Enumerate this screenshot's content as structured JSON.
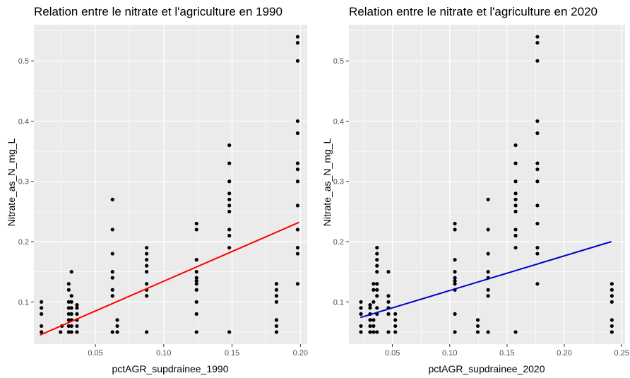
{
  "chart_data": [
    {
      "type": "scatter",
      "title": "Relation entre le nitrate et l'agriculture en 1990",
      "xlabel": "pctAGR_supdrainee_1990",
      "ylabel": "Nitrate_as_N_mg_L",
      "xlim": [
        0.005,
        0.205
      ],
      "ylim": [
        0.03,
        0.56
      ],
      "xticks": [
        0.05,
        0.1,
        0.15,
        0.2
      ],
      "xtick_labels": [
        "0.05",
        "0.10",
        "0.15",
        "0.20"
      ],
      "yticks": [
        0.1,
        0.2,
        0.3,
        0.4,
        0.5
      ],
      "ytick_labels": [
        "0.1",
        "0.2",
        "0.3",
        "0.4",
        "0.5"
      ],
      "grid": true,
      "background": "#ebebeb",
      "point_color": "#000000",
      "trend_color": "#ff0000",
      "trend": {
        "x": [
          0.0095,
          0.199
        ],
        "y": [
          0.045,
          0.232
        ]
      },
      "points": [
        [
          0.0105,
          0.05
        ],
        [
          0.0105,
          0.06
        ],
        [
          0.0105,
          0.08
        ],
        [
          0.0105,
          0.09
        ],
        [
          0.0105,
          0.1
        ],
        [
          0.0245,
          0.05
        ],
        [
          0.0255,
          0.06
        ],
        [
          0.0305,
          0.05
        ],
        [
          0.0305,
          0.06
        ],
        [
          0.0305,
          0.07
        ],
        [
          0.0305,
          0.08
        ],
        [
          0.0305,
          0.09
        ],
        [
          0.0305,
          0.1
        ],
        [
          0.0305,
          0.12
        ],
        [
          0.0305,
          0.13
        ],
        [
          0.0325,
          0.05
        ],
        [
          0.0325,
          0.06
        ],
        [
          0.0325,
          0.07
        ],
        [
          0.0325,
          0.08
        ],
        [
          0.0325,
          0.09
        ],
        [
          0.0325,
          0.1
        ],
        [
          0.0325,
          0.11
        ],
        [
          0.0325,
          0.15
        ],
        [
          0.0365,
          0.05
        ],
        [
          0.0365,
          0.06
        ],
        [
          0.0365,
          0.07
        ],
        [
          0.0365,
          0.08
        ],
        [
          0.0365,
          0.09
        ],
        [
          0.0365,
          0.095
        ],
        [
          0.0625,
          0.05
        ],
        [
          0.0625,
          0.11
        ],
        [
          0.0625,
          0.12
        ],
        [
          0.0625,
          0.14
        ],
        [
          0.0625,
          0.15
        ],
        [
          0.0625,
          0.18
        ],
        [
          0.0625,
          0.22
        ],
        [
          0.0625,
          0.27
        ],
        [
          0.066,
          0.05
        ],
        [
          0.066,
          0.06
        ],
        [
          0.066,
          0.07
        ],
        [
          0.0875,
          0.05
        ],
        [
          0.0875,
          0.11
        ],
        [
          0.0875,
          0.12
        ],
        [
          0.0875,
          0.13
        ],
        [
          0.0875,
          0.15
        ],
        [
          0.0875,
          0.16
        ],
        [
          0.0875,
          0.17
        ],
        [
          0.0875,
          0.18
        ],
        [
          0.0875,
          0.19
        ],
        [
          0.124,
          0.05
        ],
        [
          0.124,
          0.08
        ],
        [
          0.124,
          0.1
        ],
        [
          0.124,
          0.12
        ],
        [
          0.124,
          0.13
        ],
        [
          0.124,
          0.135
        ],
        [
          0.124,
          0.14
        ],
        [
          0.124,
          0.15
        ],
        [
          0.124,
          0.17
        ],
        [
          0.124,
          0.22
        ],
        [
          0.124,
          0.23
        ],
        [
          0.148,
          0.05
        ],
        [
          0.148,
          0.19
        ],
        [
          0.148,
          0.21
        ],
        [
          0.148,
          0.22
        ],
        [
          0.148,
          0.25
        ],
        [
          0.148,
          0.26
        ],
        [
          0.148,
          0.27
        ],
        [
          0.148,
          0.28
        ],
        [
          0.148,
          0.3
        ],
        [
          0.148,
          0.33
        ],
        [
          0.148,
          0.36
        ],
        [
          0.1825,
          0.05
        ],
        [
          0.1825,
          0.06
        ],
        [
          0.1825,
          0.07
        ],
        [
          0.1825,
          0.1
        ],
        [
          0.1825,
          0.11
        ],
        [
          0.1825,
          0.12
        ],
        [
          0.1825,
          0.13
        ],
        [
          0.198,
          0.13
        ],
        [
          0.198,
          0.18
        ],
        [
          0.198,
          0.19
        ],
        [
          0.198,
          0.22
        ],
        [
          0.198,
          0.26
        ],
        [
          0.198,
          0.3
        ],
        [
          0.198,
          0.32
        ],
        [
          0.198,
          0.33
        ],
        [
          0.198,
          0.38
        ],
        [
          0.198,
          0.4
        ],
        [
          0.198,
          0.5
        ],
        [
          0.198,
          0.53
        ],
        [
          0.198,
          0.54
        ]
      ]
    },
    {
      "type": "scatter",
      "title": "Relation entre le nitrate et l'agriculture en 2020",
      "xlabel": "pctAGR_supdrainee_2020",
      "ylabel": "Nitrate_as_N_mg_L",
      "xlim": [
        0.012,
        0.253
      ],
      "ylim": [
        0.03,
        0.56
      ],
      "xticks": [
        0.05,
        0.1,
        0.15,
        0.2,
        0.25
      ],
      "xtick_labels": [
        "0.05",
        "0.10",
        "0.15",
        "0.20",
        "0.25"
      ],
      "yticks": [
        0.1,
        0.2,
        0.3,
        0.4,
        0.5
      ],
      "ytick_labels": [
        "0.1",
        "0.2",
        "0.3",
        "0.4",
        "0.5"
      ],
      "grid": true,
      "background": "#ebebeb",
      "point_color": "#000000",
      "trend_color": "#0000cc",
      "trend": {
        "x": [
          0.022,
          0.241
        ],
        "y": [
          0.074,
          0.2
        ]
      },
      "points": [
        [
          0.0225,
          0.05
        ],
        [
          0.0225,
          0.06
        ],
        [
          0.0225,
          0.08
        ],
        [
          0.0225,
          0.09
        ],
        [
          0.0225,
          0.1
        ],
        [
          0.0305,
          0.05
        ],
        [
          0.0305,
          0.06
        ],
        [
          0.0305,
          0.07
        ],
        [
          0.0305,
          0.08
        ],
        [
          0.0305,
          0.09
        ],
        [
          0.0305,
          0.095
        ],
        [
          0.0335,
          0.05
        ],
        [
          0.0335,
          0.06
        ],
        [
          0.0335,
          0.07
        ],
        [
          0.0335,
          0.1
        ],
        [
          0.0335,
          0.12
        ],
        [
          0.0335,
          0.13
        ],
        [
          0.0365,
          0.05
        ],
        [
          0.0365,
          0.08
        ],
        [
          0.0365,
          0.09
        ],
        [
          0.0365,
          0.11
        ],
        [
          0.0365,
          0.12
        ],
        [
          0.0365,
          0.13
        ],
        [
          0.0365,
          0.15
        ],
        [
          0.0365,
          0.16
        ],
        [
          0.0365,
          0.17
        ],
        [
          0.0365,
          0.18
        ],
        [
          0.0365,
          0.19
        ],
        [
          0.0465,
          0.05
        ],
        [
          0.0465,
          0.08
        ],
        [
          0.0465,
          0.09
        ],
        [
          0.0465,
          0.1
        ],
        [
          0.0465,
          0.11
        ],
        [
          0.0465,
          0.15
        ],
        [
          0.0525,
          0.05
        ],
        [
          0.0525,
          0.06
        ],
        [
          0.0525,
          0.07
        ],
        [
          0.0525,
          0.08
        ],
        [
          0.1045,
          0.05
        ],
        [
          0.1045,
          0.08
        ],
        [
          0.1045,
          0.12
        ],
        [
          0.1045,
          0.13
        ],
        [
          0.1045,
          0.135
        ],
        [
          0.1045,
          0.14
        ],
        [
          0.1045,
          0.15
        ],
        [
          0.1045,
          0.17
        ],
        [
          0.1045,
          0.22
        ],
        [
          0.1045,
          0.23
        ],
        [
          0.1245,
          0.05
        ],
        [
          0.1245,
          0.06
        ],
        [
          0.1245,
          0.07
        ],
        [
          0.1335,
          0.05
        ],
        [
          0.1335,
          0.11
        ],
        [
          0.1335,
          0.12
        ],
        [
          0.1335,
          0.14
        ],
        [
          0.1335,
          0.15
        ],
        [
          0.1335,
          0.18
        ],
        [
          0.1335,
          0.22
        ],
        [
          0.1335,
          0.27
        ],
        [
          0.1575,
          0.05
        ],
        [
          0.1575,
          0.19
        ],
        [
          0.1575,
          0.21
        ],
        [
          0.1575,
          0.22
        ],
        [
          0.1575,
          0.25
        ],
        [
          0.1575,
          0.26
        ],
        [
          0.1575,
          0.27
        ],
        [
          0.1575,
          0.28
        ],
        [
          0.1575,
          0.3
        ],
        [
          0.1575,
          0.33
        ],
        [
          0.1575,
          0.36
        ],
        [
          0.1765,
          0.13
        ],
        [
          0.1765,
          0.18
        ],
        [
          0.1765,
          0.19
        ],
        [
          0.1765,
          0.23
        ],
        [
          0.1765,
          0.26
        ],
        [
          0.1765,
          0.3
        ],
        [
          0.1765,
          0.32
        ],
        [
          0.1765,
          0.33
        ],
        [
          0.1765,
          0.38
        ],
        [
          0.1765,
          0.4
        ],
        [
          0.1765,
          0.5
        ],
        [
          0.1765,
          0.53
        ],
        [
          0.1765,
          0.54
        ],
        [
          0.2415,
          0.05
        ],
        [
          0.2415,
          0.06
        ],
        [
          0.2415,
          0.07
        ],
        [
          0.2415,
          0.1
        ],
        [
          0.2415,
          0.11
        ],
        [
          0.2415,
          0.12
        ],
        [
          0.2415,
          0.13
        ]
      ]
    }
  ]
}
